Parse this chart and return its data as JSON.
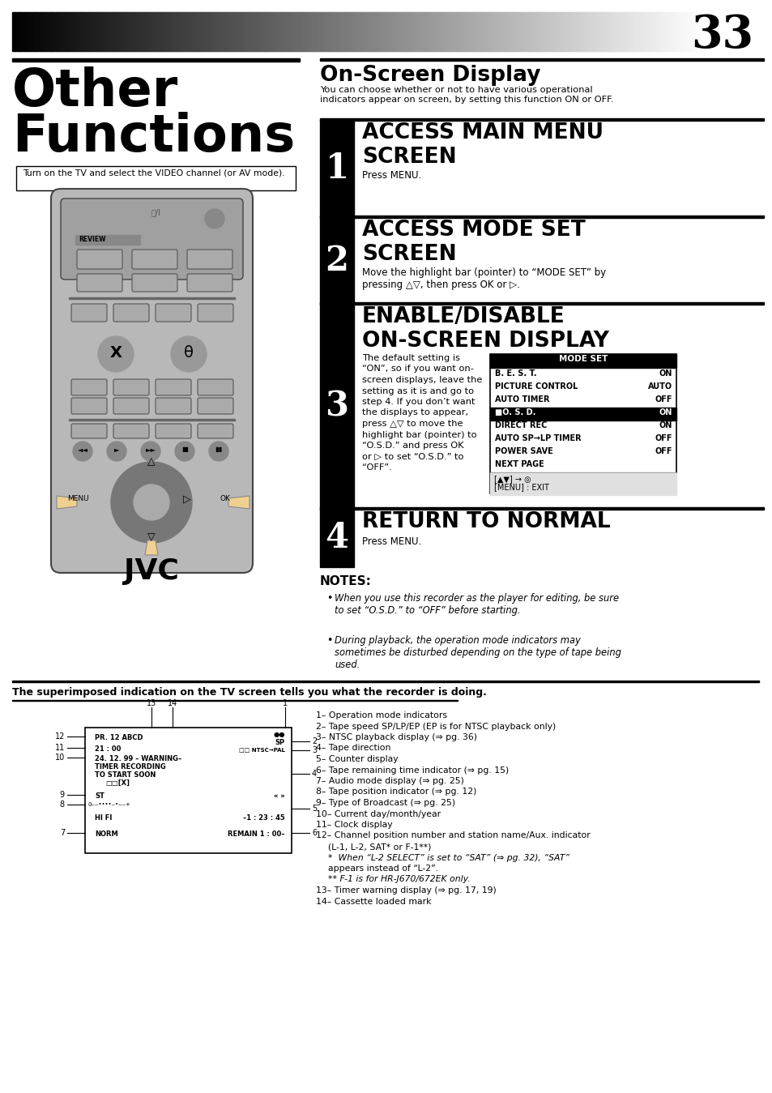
{
  "page_number": "33",
  "right_title": "On-Screen Display",
  "right_subtitle": "You can choose whether or not to have various operational\nindicators appear on screen, by setting this function ON or OFF.",
  "left_title1": "Other",
  "left_title2": "Functions",
  "prerequisite": "Turn on the TV and select the VIDEO channel (or AV mode).",
  "steps": [
    {
      "num": "1",
      "heading": "ACCESS MAIN MENU\nSCREEN",
      "body": "Press MENU."
    },
    {
      "num": "2",
      "heading": "ACCESS MODE SET\nSCREEN",
      "body": "Move the highlight bar (pointer) to “MODE SET” by\npressing △▽, then press OK or ▷."
    },
    {
      "num": "3",
      "heading": "ENABLE/DISABLE\nON-SCREEN DISPLAY",
      "body": "The default setting is\n“ON”, so if you want on-\nscreen displays, leave the\nsetting as it is and go to\nstep 4. If you don’t want\nthe displays to appear,\npress △▽ to move the\nhighlight bar (pointer) to\n“O.S.D.” and press OK\nor ▷ to set “O.S.D.” to\n“OFF”."
    },
    {
      "num": "4",
      "heading": "RETURN TO NORMAL",
      "body": "Press MENU."
    }
  ],
  "mode_set_title": "MODE SET",
  "mode_set_lines": [
    {
      "label": "B. E. S. T.",
      "value": "ON",
      "highlight": false
    },
    {
      "label": "PICTURE CONTROL",
      "value": "AUTO",
      "highlight": false
    },
    {
      "label": "AUTO TIMER",
      "value": "OFF",
      "highlight": false
    },
    {
      "label": "■O. S. D.",
      "value": "ON",
      "highlight": true
    },
    {
      "label": "DIRECT REC",
      "value": "ON",
      "highlight": false
    },
    {
      "label": "AUTO SP→LP TIMER",
      "value": "OFF",
      "highlight": false
    },
    {
      "label": "POWER SAVE",
      "value": "OFF",
      "highlight": false
    },
    {
      "label": "NEXT PAGE",
      "value": "",
      "highlight": false
    }
  ],
  "notes_title": "NOTES:",
  "notes": [
    "When you use this recorder as the player for editing, be sure\nto set “O.S.D.” to “OFF” before starting.",
    "During playback, the operation mode indicators may\nsometimes be disturbed depending on the type of tape being\nused."
  ],
  "bottom_heading": "The superimposed indication on the TV screen tells you what the recorder is doing.",
  "osd_labels_right": [
    "1– Operation mode indicators",
    "2– Tape speed SP/LP/EP (EP is for NTSC playback only)",
    "3– NTSC playback display (⇒ pg. 36)",
    "4– Tape direction",
    "5– Counter display",
    "6– Tape remaining time indicator (⇒ pg. 15)",
    "7– Audio mode display (⇒ pg. 25)",
    "8– Tape position indicator (⇒ pg. 12)",
    "9– Type of Broadcast (⇒ pg. 25)",
    "10– Current day/month/year",
    "11– Clock display",
    "12– Channel position number and station name/Aux. indicator",
    "     (L-1, L-2, SAT* or F-1**)",
    "     *  When “L-2 SELECT” is set to “SAT” (⇒ pg. 32), “SAT”",
    "        appears instead of “L-2”.",
    "     ** F-1 is for HR-J670/672EK only.",
    "13– Timer warning display (⇒ pg. 17, 19)",
    "14– Cassette loaded mark"
  ]
}
